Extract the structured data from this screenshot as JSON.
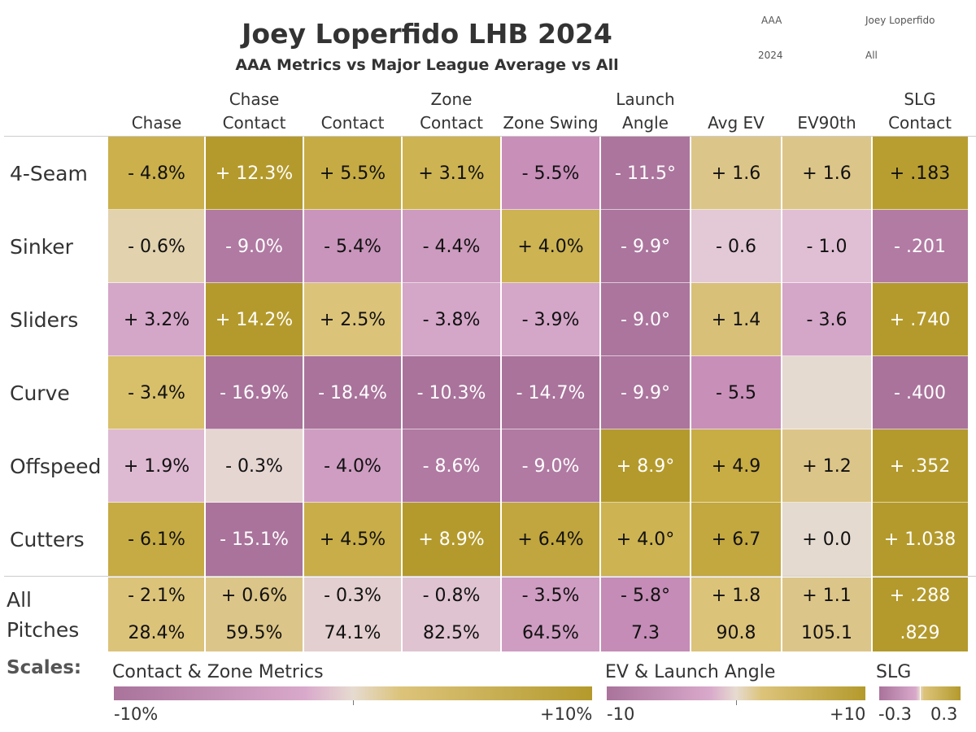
{
  "title": "Joey Loperfido LHB 2024",
  "subtitle": "AAA Metrics vs Major League Average vs All",
  "filters": {
    "level": "AAA",
    "player": "Joey Loperfido",
    "year": "2024",
    "pitch_filter": "All"
  },
  "colors": {
    "purple_dark": "#a9739b",
    "purple_mid": "#c88fb9",
    "purple_light": "#dcb4d0",
    "neutral": "#e4dad0",
    "gold_light": "#dcc588",
    "gold_mid": "#cdb352",
    "gold_dark": "#b49a2c"
  },
  "chart_data": {
    "type": "heatmap",
    "title": "Joey Loperfido LHB 2024",
    "subtitle": "AAA Metrics vs Major League Average vs All",
    "columns": [
      {
        "line1": "",
        "line2": "Chase"
      },
      {
        "line1": "Chase",
        "line2": "Contact"
      },
      {
        "line1": "",
        "line2": "Contact"
      },
      {
        "line1": "Zone",
        "line2": "Contact"
      },
      {
        "line1": "",
        "line2": "Zone Swing"
      },
      {
        "line1": "Launch",
        "line2": "Angle"
      },
      {
        "line1": "",
        "line2": "Avg EV"
      },
      {
        "line1": "",
        "line2": "EV90th"
      },
      {
        "line1": "SLG",
        "line2": "Contact"
      }
    ],
    "rows": [
      {
        "label": "4-Seam",
        "values": [
          "- 4.8%",
          "+ 12.3%",
          "+ 5.5%",
          "+ 3.1%",
          "- 5.5%",
          "- 11.5°",
          "+ 1.6",
          "+ 1.6",
          "+ .183"
        ],
        "colors": [
          "#cbb04c",
          "#b49a2c",
          "#c6ab44",
          "#cdb352",
          "#c88fb9",
          "#ab759d",
          "#dcc588",
          "#dcc588",
          "#b89e31"
        ]
      },
      {
        "label": "Sinker",
        "values": [
          "- 0.6%",
          "- 9.0%",
          "- 5.4%",
          "- 4.4%",
          "+ 4.0%",
          "- 9.9°",
          "- 0.6",
          "- 1.0",
          "- .201"
        ],
        "colors": [
          "#e2d2ae",
          "#b07aa2",
          "#c995bc",
          "#cd9bc0",
          "#cdb352",
          "#ab759d",
          "#e3c8d6",
          "#e0bfd4",
          "#b27ba3"
        ]
      },
      {
        "label": "Sliders",
        "values": [
          "+ 3.2%",
          "+ 14.2%",
          "+ 2.5%",
          "- 3.8%",
          "- 3.9%",
          "- 9.0°",
          "+ 1.4",
          "- 3.6",
          "+ .740"
        ],
        "colors": [
          "#d4a6c8",
          "#b49a2c",
          "#dcc37a",
          "#d4a6c8",
          "#d4a6c8",
          "#ab759d",
          "#d8c079",
          "#d4a6c8",
          "#b49a2c"
        ]
      },
      {
        "label": "Curve",
        "values": [
          "- 3.4%",
          "- 16.9%",
          "- 18.4%",
          "- 10.3%",
          "- 14.7%",
          "- 9.9°",
          "- 5.5",
          "",
          "- .400"
        ],
        "colors": [
          "#d8bf6a",
          "#a9739b",
          "#a9739b",
          "#a9739b",
          "#a9739b",
          "#ab759d",
          "#c88fb9",
          "#e4dad0",
          "#a9739b"
        ]
      },
      {
        "label": "Offspeed",
        "values": [
          "+ 1.9%",
          "- 0.3%",
          "- 4.0%",
          "- 8.6%",
          "- 9.0%",
          "+ 8.9°",
          "+ 4.9",
          "+ 1.2",
          "+ .352"
        ],
        "colors": [
          "#deb9d2",
          "#e6d6d2",
          "#cf9dc2",
          "#b07aa2",
          "#b07aa2",
          "#b49a2c",
          "#c8ac44",
          "#dcc588",
          "#b49a2c"
        ]
      },
      {
        "label": "Cutters",
        "values": [
          "- 6.1%",
          "- 15.1%",
          "+ 4.5%",
          "+ 8.9%",
          "+ 6.4%",
          "+ 4.0°",
          "+ 6.7",
          "+ 0.0",
          "+ 1.038"
        ],
        "colors": [
          "#c6ab44",
          "#a9739b",
          "#c8ad48",
          "#b49a2c",
          "#c1a53e",
          "#cdb352",
          "#c3a73f",
          "#e4dad0",
          "#b49a2c"
        ]
      }
    ],
    "all_row": {
      "label_line1": "All",
      "label_line2": "Pitches",
      "diffs": [
        "- 2.1%",
        "+ 0.6%",
        "- 0.3%",
        "- 0.8%",
        "- 3.5%",
        "- 5.8°",
        "+ 1.8",
        "+ 1.1",
        "+ .288"
      ],
      "values": [
        "28.4%",
        "59.5%",
        "74.1%",
        "82.5%",
        "64.5%",
        "7.3",
        "90.8",
        "105.1",
        ".829"
      ],
      "colors": [
        "#dcc37a",
        "#dcc588",
        "#e3cfcf",
        "#dfc3d0",
        "#cf9dc2",
        "#c48cb6",
        "#dcc37a",
        "#dcc588",
        "#b49a2c"
      ]
    },
    "scales": {
      "label": "Scales:",
      "contact_zone": {
        "title": "Contact & Zone Metrics",
        "min_label": "-10%",
        "max_label": "+10%",
        "range": [
          -10,
          10
        ]
      },
      "ev_launch": {
        "title": "EV & Launch Angle",
        "min_label": "-10",
        "max_label": "+10",
        "range": [
          -10,
          10
        ]
      },
      "slg": {
        "title": "SLG",
        "min_label": "-0.3",
        "max_label": "0.3",
        "range": [
          -0.3,
          0.3
        ]
      }
    }
  }
}
